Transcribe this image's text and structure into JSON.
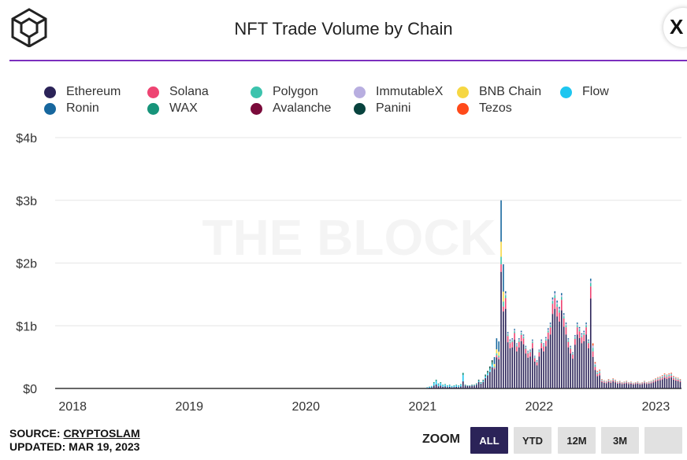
{
  "header": {
    "title": "NFT Trade Volume by Chain",
    "corner_icon": "close-icon",
    "corner_label": "X"
  },
  "watermark": "THE BLOCK",
  "legend": [
    {
      "label": "Ethereum",
      "color": "#2b2358"
    },
    {
      "label": "Solana",
      "color": "#ee4472"
    },
    {
      "label": "Polygon",
      "color": "#3cc3ad"
    },
    {
      "label": "ImmutableX",
      "color": "#b8aee0"
    },
    {
      "label": "BNB Chain",
      "color": "#f6d743"
    },
    {
      "label": "Flow",
      "color": "#1ec6f0"
    },
    {
      "label": "Ronin",
      "color": "#17679e"
    },
    {
      "label": "WAX",
      "color": "#17947a"
    },
    {
      "label": "Avalanche",
      "color": "#7a0a3a"
    },
    {
      "label": "Panini",
      "color": "#08433e"
    },
    {
      "label": "Tezos",
      "color": "#ff4a1a"
    }
  ],
  "chart_data": {
    "type": "bar",
    "stacked": true,
    "title": "NFT Trade Volume by Chain",
    "y_ticks": [
      "$0",
      "$1b",
      "$2b",
      "$3b",
      "$4b"
    ],
    "ylim": [
      0,
      4
    ],
    "y_unit": "billion USD",
    "x_ticks": [
      "2018",
      "2019",
      "2020",
      "2021",
      "2022",
      "2023"
    ],
    "xlim": [
      2017.85,
      2023.22
    ],
    "grid": true,
    "legend_position": "top",
    "series": [
      {
        "name": "Ethereum"
      },
      {
        "name": "Solana"
      },
      {
        "name": "Polygon"
      },
      {
        "name": "ImmutableX"
      },
      {
        "name": "BNB Chain"
      },
      {
        "name": "Flow"
      },
      {
        "name": "Ronin"
      },
      {
        "name": "WAX"
      },
      {
        "name": "Avalanche"
      },
      {
        "name": "Panini"
      },
      {
        "name": "Tezos"
      }
    ],
    "weekly_totals": {
      "start": 2021.04,
      "step": 0.0192,
      "values_billion": [
        0.02,
        0.03,
        0.04,
        0.1,
        0.14,
        0.08,
        0.1,
        0.06,
        0.07,
        0.05,
        0.06,
        0.04,
        0.05,
        0.06,
        0.05,
        0.07,
        0.25,
        0.06,
        0.05,
        0.05,
        0.06,
        0.06,
        0.08,
        0.14,
        0.1,
        0.14,
        0.22,
        0.28,
        0.35,
        0.45,
        0.5,
        0.8,
        0.75,
        3.0,
        1.98,
        1.55,
        0.9,
        0.78,
        0.8,
        0.95,
        0.72,
        0.8,
        0.92,
        0.86,
        0.68,
        0.6,
        0.62,
        0.78,
        0.52,
        0.45,
        0.62,
        0.78,
        0.72,
        0.82,
        0.96,
        1.05,
        1.45,
        1.55,
        1.4,
        1.3,
        1.52,
        1.2,
        1.05,
        0.8,
        0.68,
        0.58,
        0.85,
        1.05,
        0.98,
        0.88,
        0.92,
        1.05,
        0.78,
        1.75,
        0.72,
        0.42,
        0.28,
        0.3,
        0.15,
        0.13,
        0.12,
        0.15,
        0.13,
        0.16,
        0.14,
        0.11,
        0.12,
        0.1,
        0.11,
        0.12,
        0.1,
        0.11,
        0.09,
        0.1,
        0.11,
        0.09,
        0.1,
        0.12,
        0.1,
        0.11,
        0.12,
        0.14,
        0.16,
        0.18,
        0.19,
        0.21,
        0.24,
        0.22,
        0.24,
        0.25,
        0.2,
        0.18,
        0.17,
        0.15
      ]
    }
  },
  "footer": {
    "source_label": "SOURCE: ",
    "source_link": "CRYPTOSLAM",
    "updated": "UPDATED: MAR 19, 2023"
  },
  "zoom": {
    "label": "ZOOM",
    "buttons": [
      "ALL",
      "YTD",
      "12M",
      "3M",
      ""
    ],
    "active": "ALL"
  }
}
